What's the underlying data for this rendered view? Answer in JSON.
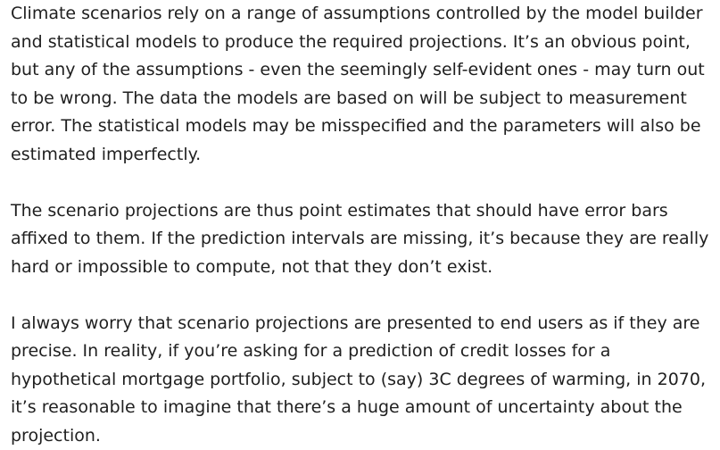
{
  "paragraphs": [
    {
      "lines": [
        "Climate scenarios rely on a range of assumptions controlled by the model builder",
        "and statistical models to produce the required projections. It’s an obvious point,",
        "but any of the assumptions - even the seemingly self-evident ones - may turn out",
        "to be wrong. The data the models are based on will be subject to measurement",
        "error. The statistical models may be misspecified and the parameters will also be",
        "estimated imperfectly."
      ]
    },
    {
      "lines": [
        "The scenario projections are thus point estimates that should have error bars",
        "affixed to them. If the prediction intervals are missing, it’s because they are really",
        "hard or impossible to compute, not that they don’t exist."
      ]
    },
    {
      "lines": [
        "I always worry that scenario projections are presented to end users as if they are",
        "precise. In reality, if you’re asking for a prediction of credit losses for a",
        "hypothetical mortgage portfolio, subject to (say) 3C degrees of warming, in 2070,",
        "it’s reasonable to imagine that there’s a huge amount of uncertainty about the",
        "projection."
      ]
    }
  ]
}
